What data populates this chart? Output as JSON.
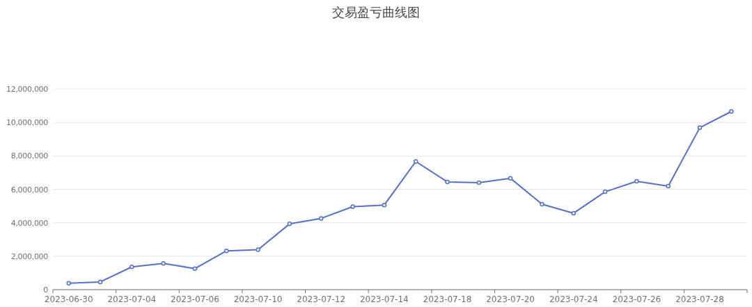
{
  "chart_data": {
    "type": "line",
    "title": "交易盈亏曲线图",
    "categories": [
      "2023-06-30",
      null,
      "2023-07-04",
      null,
      "2023-07-06",
      null,
      "2023-07-10",
      null,
      "2023-07-12",
      null,
      "2023-07-14",
      null,
      "2023-07-18",
      null,
      "2023-07-20",
      null,
      "2023-07-24",
      null,
      "2023-07-26",
      null,
      "2023-07-28",
      null
    ],
    "values": [
      380000,
      460000,
      1360000,
      1570000,
      1260000,
      2320000,
      2390000,
      3930000,
      4260000,
      4960000,
      5060000,
      7660000,
      6440000,
      6390000,
      6650000,
      5110000,
      4570000,
      5850000,
      6480000,
      6190000,
      9680000,
      10650000
    ],
    "color": "#5470c6",
    "ylim": [
      0,
      12000000
    ],
    "yticks": [
      0,
      {
        "value": 2000000,
        "label": "2,000,000"
      },
      {
        "value": 4000000,
        "label": "4,000,000"
      },
      {
        "value": 6000000,
        "label": "6,000,000"
      },
      {
        "value": 8000000,
        "label": "8,000,000"
      },
      {
        "value": 10000000,
        "label": "10,000,000"
      },
      {
        "value": 12000000,
        "label": "12,000,000"
      }
    ],
    "grid": "y",
    "marker": "circle",
    "line_style": "solid"
  }
}
